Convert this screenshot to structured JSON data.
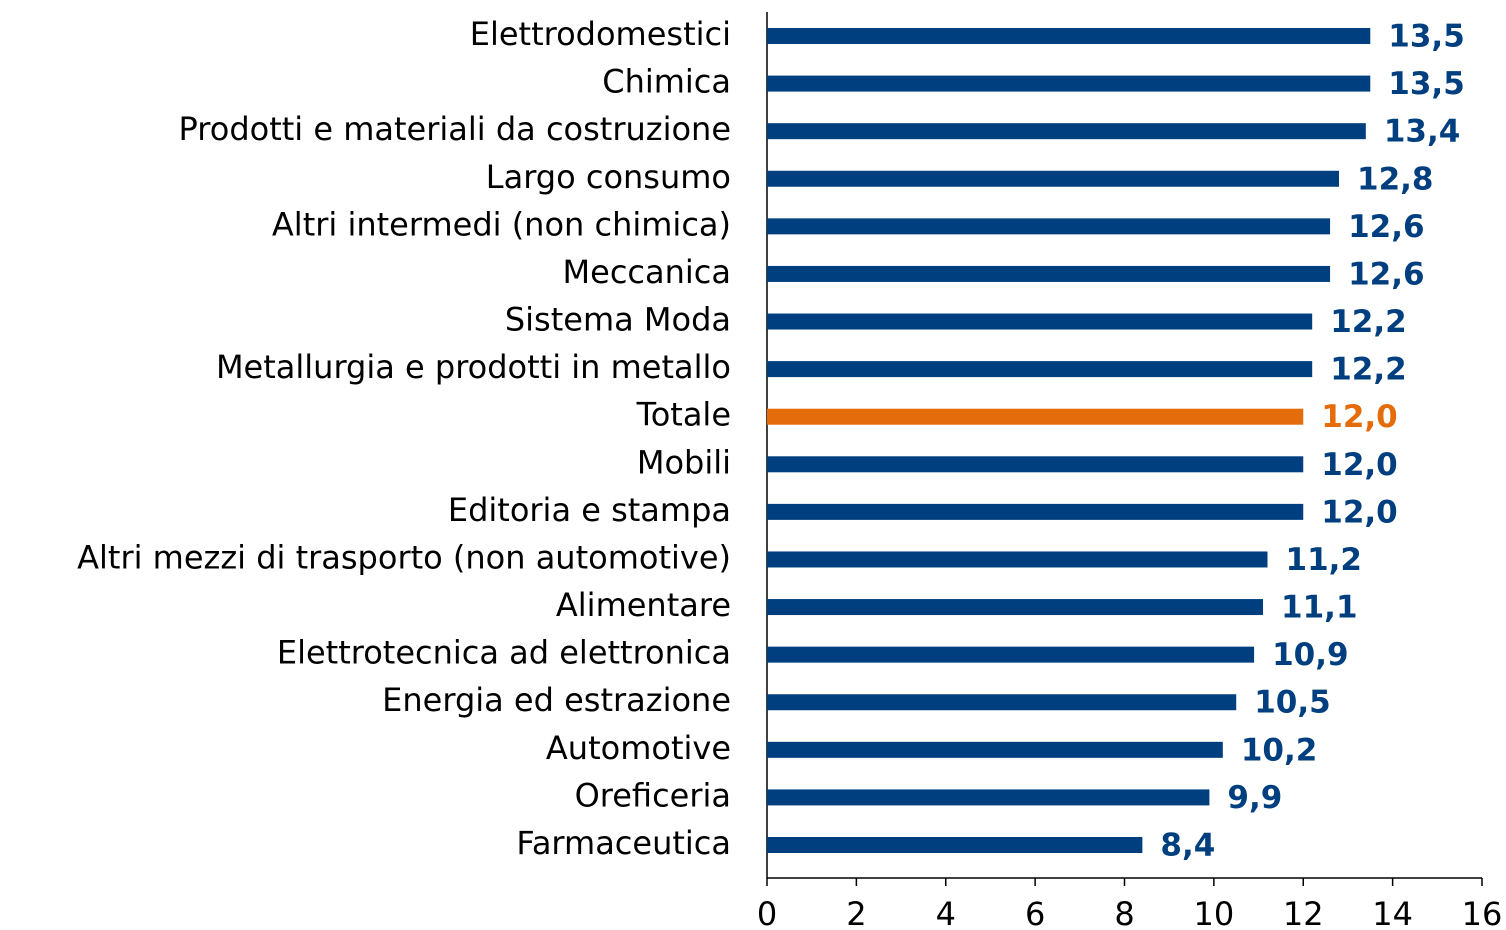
{
  "chart_data": {
    "type": "barh",
    "categories": [
      "Elettrodomestici",
      "Chimica",
      "Prodotti e materiali da costruzione",
      "Largo consumo",
      "Altri intermedi (non chimica)",
      "Meccanica",
      "Sistema Moda",
      "Metallurgia e prodotti in metallo",
      "Totale",
      "Mobili",
      "Editoria e stampa",
      "Altri mezzi di trasporto (non automotive)",
      "Alimentare",
      "Elettrotecnica ad elettronica",
      "Energia ed estrazione",
      "Automotive",
      "Oreficeria",
      "Farmaceutica"
    ],
    "values": [
      13.5,
      13.5,
      13.4,
      12.8,
      12.6,
      12.6,
      12.2,
      12.2,
      12.0,
      12.0,
      12.0,
      11.2,
      11.1,
      10.9,
      10.5,
      10.2,
      9.9,
      8.4
    ],
    "value_labels": [
      "13,5",
      "13,5",
      "13,4",
      "12,8",
      "12,6",
      "12,6",
      "12,2",
      "12,2",
      "12,0",
      "12,0",
      "12,0",
      "11,2",
      "11,1",
      "10,9",
      "10,5",
      "10,2",
      "9,9",
      "8,4"
    ],
    "colors": [
      "#003f7f",
      "#003f7f",
      "#003f7f",
      "#003f7f",
      "#003f7f",
      "#003f7f",
      "#003f7f",
      "#003f7f",
      "#e46c0a",
      "#003f7f",
      "#003f7f",
      "#003f7f",
      "#003f7f",
      "#003f7f",
      "#003f7f",
      "#003f7f",
      "#003f7f",
      "#003f7f"
    ],
    "xlim": [
      0,
      16
    ],
    "xticks": [
      0,
      2,
      4,
      6,
      8,
      10,
      12,
      14,
      16
    ],
    "grid": false
  }
}
